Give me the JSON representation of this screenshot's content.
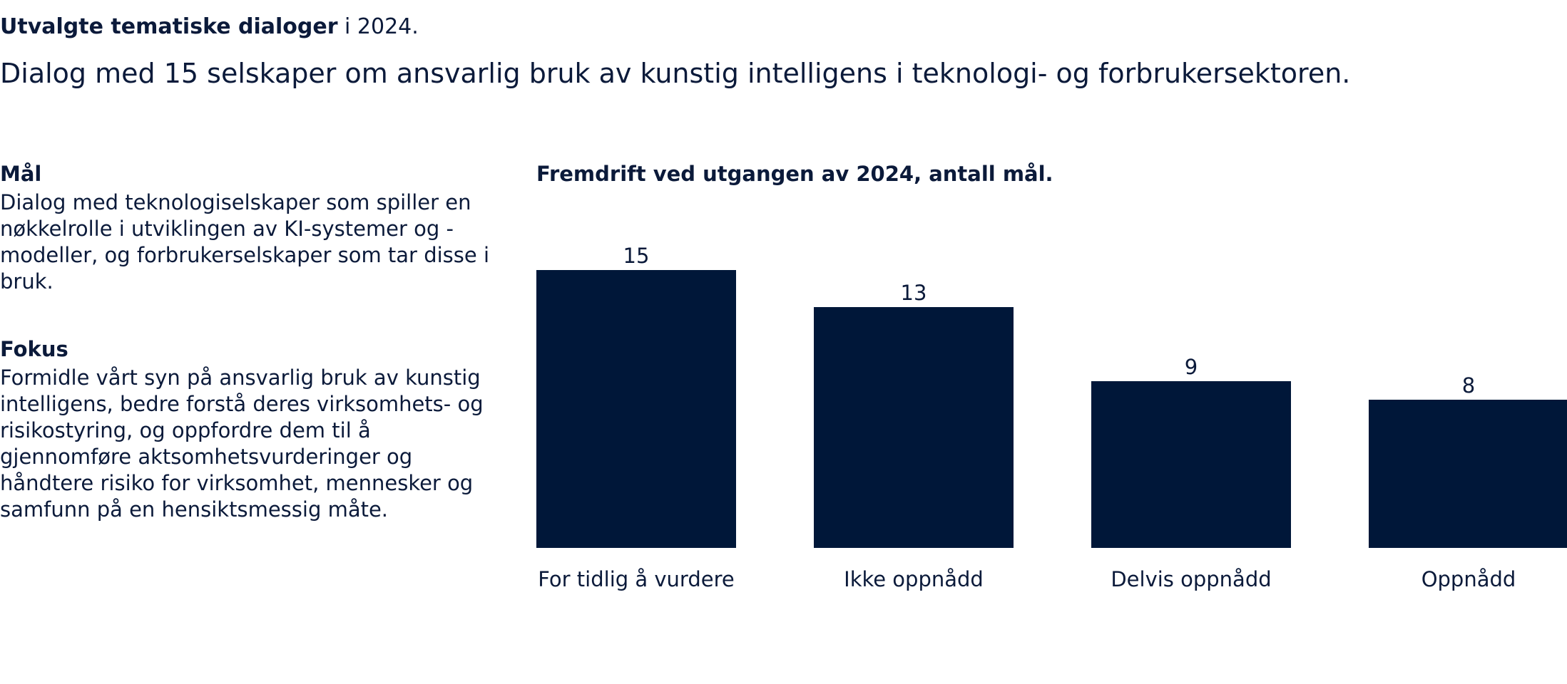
{
  "header": {
    "kicker_bold": "Utvalgte tematiske dialoger",
    "kicker_rest": " i 2024.",
    "headline": "Dialog med 15 selskaper om ansvarlig bruk av kunstig intelligens i teknologi- og forbrukersektoren."
  },
  "goal": {
    "title": "Mål",
    "body": "Dialog med teknologiselskaper som spiller en nøkkelrolle i utviklingen av KI-systemer og -modeller, og forbrukerselskaper som tar disse i bruk."
  },
  "focus": {
    "title": "Fokus",
    "body": "Formidle vårt syn på ansvarlig bruk av kunstig intelligens, bedre forstå deres virksomhets- og risikostyring, og oppfordre dem til å gjennomføre aktsomhetsvurderinger og håndtere risiko for virksomhet, mennesker og samfunn på en hensiktsmessig måte."
  },
  "colors": {
    "bar": "#001739",
    "text": "#0b1a3a"
  },
  "chart_data": {
    "type": "bar",
    "title": "Fremdrift ved utgangen av 2024, antall mål.",
    "categories": [
      "For tidlig å vurdere",
      "Ikke oppnådd",
      "Delvis oppnådd",
      "Oppnådd"
    ],
    "values": [
      15,
      13,
      9,
      8
    ],
    "ylim": [
      0,
      15
    ],
    "grid": false,
    "xlabel": "",
    "ylabel": ""
  }
}
